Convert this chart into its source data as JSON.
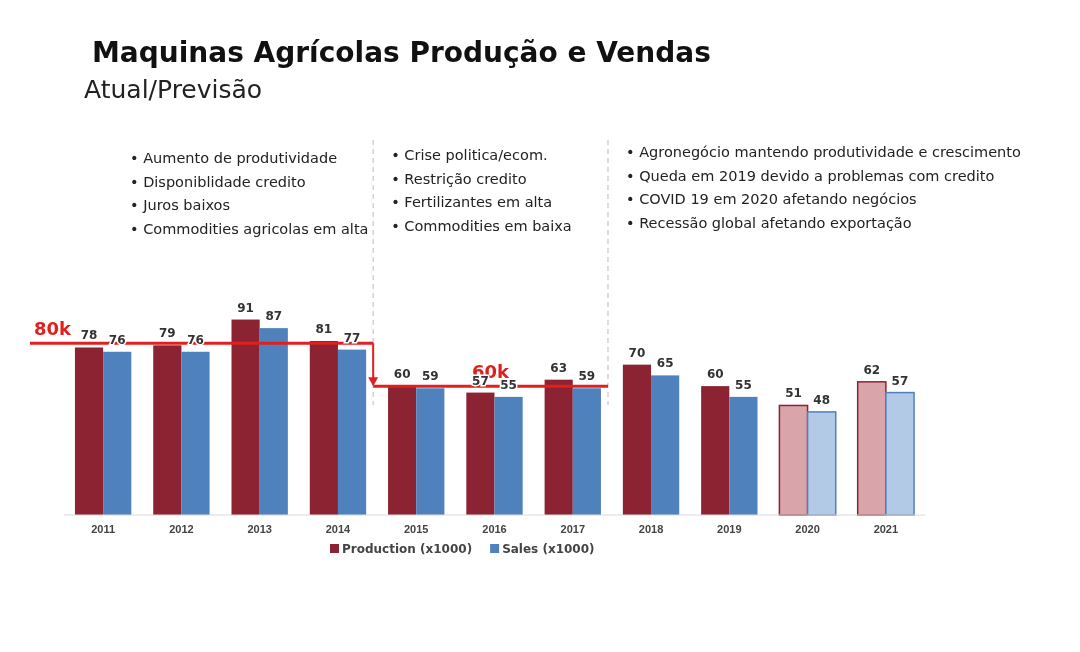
{
  "chart_data": {
    "type": "bar",
    "title": "Maquinas Agrícolas Produção e Vendas",
    "subtitle": "Atual/Previsão",
    "categories": [
      "2011",
      "2012",
      "2013",
      "2014",
      "2015",
      "2016",
      "2017",
      "2018",
      "2019",
      "2020",
      "2021"
    ],
    "series": [
      {
        "name": "Production (x1000)",
        "color": "#8b2332",
        "colors": [
          "#8b2332",
          "#8b2332",
          "#8b2332",
          "#8b2332",
          "#8b2332",
          "#8b2332",
          "#8b2332",
          "#8b2332",
          "#8b2332",
          "#d9a5ab",
          "#d9a5ab"
        ],
        "values": [
          78,
          79,
          91,
          81,
          60,
          57,
          63,
          70,
          60,
          51,
          62
        ]
      },
      {
        "name": "Sales (x1000)",
        "color": "#4f81bd",
        "colors": [
          "#4f81bd",
          "#4f81bd",
          "#4f81bd",
          "#4f81bd",
          "#4f81bd",
          "#4f81bd",
          "#4f81bd",
          "#4f81bd",
          "#4f81bd",
          "#b3cae6",
          "#b3cae6"
        ],
        "values": [
          76,
          76,
          87,
          77,
          59,
          55,
          59,
          65,
          55,
          48,
          57
        ]
      }
    ],
    "data_labels": true,
    "legend": "bottom",
    "ref_lines": [
      {
        "axis": "y",
        "value": 80,
        "label": "80k",
        "color": "#e0201f"
      },
      {
        "axis": "y",
        "value": 60,
        "label": "60k",
        "color": "#e0201f"
      }
    ],
    "annotations": [
      "• Aumento de produtividade\n• Disponiblidade credito\n• Juros baixos\n• Commodities  agricolas em alta",
      "• Crise politica/ecom.\n• Restrição credito\n• Fertilizantes em alta\n• Commodities em baixa",
      "• Agronegócio mantendo produtividade e crescimento\n• Queda em 2019 devido a problemas com credito\n• COVID 19 em 2020 afetando negócios\n• Recessão global afetando exportação"
    ]
  }
}
